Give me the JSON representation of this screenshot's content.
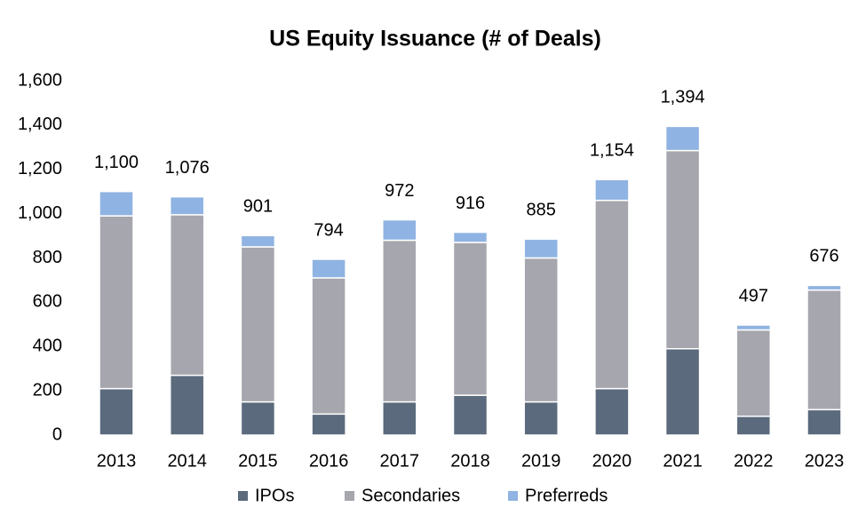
{
  "chart_data": {
    "type": "stacked_bar",
    "title": "US Equity Issuance (# of Deals)",
    "categories": [
      "2013",
      "2014",
      "2015",
      "2016",
      "2017",
      "2018",
      "2019",
      "2020",
      "2021",
      "2022",
      "2023"
    ],
    "series": [
      {
        "name": "IPOs",
        "color": "#5b6a7c",
        "values": [
          210,
          270,
          150,
          95,
          150,
          180,
          150,
          210,
          390,
          85,
          115
        ]
      },
      {
        "name": "Secondaries",
        "color": "#a6a6ae",
        "values": [
          780,
          725,
          700,
          615,
          730,
          690,
          650,
          850,
          895,
          390,
          540
        ]
      },
      {
        "name": "Preferreds",
        "color": "#8fb3e2",
        "values": [
          110,
          81,
          51,
          84,
          92,
          46,
          85,
          94,
          109,
          22,
          21
        ]
      }
    ],
    "totals": {
      "values": [
        1100,
        1076,
        901,
        794,
        972,
        916,
        885,
        1154,
        1394,
        497,
        676
      ],
      "value_labels": [
        "1,100",
        "1,076",
        "901",
        "794",
        "972",
        "916",
        "885",
        "1,154",
        "1,394",
        "497",
        "676"
      ]
    },
    "ylim": [
      0,
      1600
    ],
    "yticks": [
      0,
      200,
      400,
      600,
      800,
      {
        "value": 1000,
        "label": "1,000"
      },
      {
        "value": 1200,
        "label": "1,200"
      },
      {
        "value": 1400,
        "label": "1,400"
      },
      {
        "value": 1600,
        "label": "1,600"
      }
    ],
    "grid": false,
    "legend": "bottom"
  }
}
